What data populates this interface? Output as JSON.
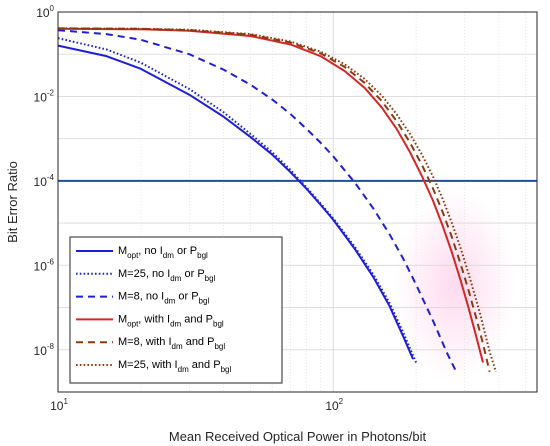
{
  "chart_data": {
    "type": "line",
    "x_scale": "log",
    "y_scale": "log",
    "xlabel": "Mean Received Optical Power in Photons/bit",
    "ylabel": "Bit Error Ratio",
    "xlim": [
      10,
      550
    ],
    "ylim": [
      1e-09,
      1
    ],
    "grid": true,
    "legend_position": "bottom-left",
    "x_ticks": [
      {
        "value": 10,
        "base": "10",
        "exp": "1"
      },
      {
        "value": 100,
        "base": "10",
        "exp": "2"
      }
    ],
    "y_ticks": [
      {
        "value": 1,
        "base": "10",
        "exp": "0"
      },
      {
        "value": 0.01,
        "base": "10",
        "exp": "-2"
      },
      {
        "value": 0.0001,
        "base": "10",
        "exp": "-4"
      },
      {
        "value": 1e-06,
        "base": "10",
        "exp": "-6"
      },
      {
        "value": 1e-08,
        "base": "10",
        "exp": "-8"
      }
    ],
    "reference_line": {
      "y": 0.0001,
      "color": "#1f4e9c"
    },
    "series": [
      {
        "color": "#1f1fd6",
        "dash": "solid",
        "legend": {
          "pre": "M",
          "sub1": "opt",
          "mid": ", no I",
          "sub2": "dm",
          "mid2": " or P",
          "sub3": "bgl"
        },
        "points": [
          [
            10,
            0.16
          ],
          [
            15,
            0.09
          ],
          [
            20,
            0.045
          ],
          [
            30,
            0.011
          ],
          [
            40,
            0.0033
          ],
          [
            50,
            0.0011
          ],
          [
            60,
            0.00042
          ],
          [
            70,
            0.00016
          ],
          [
            80,
            6.5e-05
          ],
          [
            90,
            2.7e-05
          ],
          [
            100,
            1.2e-05
          ],
          [
            120,
            2.4e-06
          ],
          [
            140,
            5.2e-07
          ],
          [
            160,
            1.1e-07
          ],
          [
            180,
            2e-08
          ],
          [
            195,
            6e-09
          ]
        ]
      },
      {
        "color": "#1f1fd6",
        "dash": "dotted",
        "legend": {
          "pre": "M=25",
          "sub1": "",
          "mid": ", no I",
          "sub2": "dm",
          "mid2": " or P",
          "sub3": "bgl"
        },
        "points": [
          [
            10,
            0.24
          ],
          [
            15,
            0.13
          ],
          [
            20,
            0.063
          ],
          [
            30,
            0.015
          ],
          [
            40,
            0.0042
          ],
          [
            50,
            0.0013
          ],
          [
            60,
            0.00048
          ],
          [
            70,
            0.00018
          ],
          [
            80,
            7e-05
          ],
          [
            90,
            2.9e-05
          ],
          [
            100,
            1.3e-05
          ],
          [
            120,
            2.7e-06
          ],
          [
            140,
            6e-07
          ],
          [
            160,
            1.3e-07
          ],
          [
            180,
            2.5e-08
          ],
          [
            200,
            5e-09
          ]
        ]
      },
      {
        "color": "#1f1fd6",
        "dash": "dashed",
        "legend": {
          "pre": "M=8",
          "sub1": "",
          "mid": ", no I",
          "sub2": "dm",
          "mid2": " or P",
          "sub3": "bgl"
        },
        "points": [
          [
            10,
            0.37
          ],
          [
            15,
            0.3
          ],
          [
            20,
            0.22
          ],
          [
            30,
            0.1
          ],
          [
            40,
            0.043
          ],
          [
            50,
            0.019
          ],
          [
            60,
            0.0085
          ],
          [
            70,
            0.0038
          ],
          [
            80,
            0.0017
          ],
          [
            90,
            0.0008
          ],
          [
            100,
            0.00038
          ],
          [
            120,
            9e-05
          ],
          [
            140,
            2.2e-05
          ],
          [
            160,
            5.5e-06
          ],
          [
            180,
            1.4e-06
          ],
          [
            200,
            3.5e-07
          ],
          [
            230,
            5e-08
          ],
          [
            260,
            8e-09
          ],
          [
            280,
            3e-09
          ]
        ]
      },
      {
        "color": "#d62728",
        "dash": "solid",
        "legend": {
          "pre": "M",
          "sub1": "opt",
          "mid": ", with I",
          "sub2": "dm",
          "mid2": " and P",
          "sub3": "bgl"
        },
        "points": [
          [
            10,
            0.4
          ],
          [
            20,
            0.39
          ],
          [
            30,
            0.36
          ],
          [
            50,
            0.27
          ],
          [
            70,
            0.17
          ],
          [
            90,
            0.09
          ],
          [
            110,
            0.04
          ],
          [
            130,
            0.016
          ],
          [
            150,
            0.0055
          ],
          [
            170,
            0.0017
          ],
          [
            190,
            0.00048
          ],
          [
            210,
            0.00013
          ],
          [
            230,
            3.5e-05
          ],
          [
            250,
            8.5e-06
          ],
          [
            270,
            2e-06
          ],
          [
            290,
            4.5e-07
          ],
          [
            310,
            1e-07
          ],
          [
            330,
            2.2e-08
          ],
          [
            350,
            5e-09
          ]
        ]
      },
      {
        "color": "#8b3a0f",
        "dash": "dashed",
        "legend": {
          "pre": "M=8",
          "sub1": "",
          "mid": ", with I",
          "sub2": "dm",
          "mid2": " and P",
          "sub3": "bgl"
        },
        "points": [
          [
            10,
            0.41
          ],
          [
            20,
            0.4
          ],
          [
            30,
            0.37
          ],
          [
            50,
            0.29
          ],
          [
            70,
            0.19
          ],
          [
            90,
            0.105
          ],
          [
            110,
            0.05
          ],
          [
            130,
            0.021
          ],
          [
            150,
            0.0078
          ],
          [
            170,
            0.0026
          ],
          [
            190,
            0.00081
          ],
          [
            210,
            0.00024
          ],
          [
            230,
            6.8e-05
          ],
          [
            250,
            1.8e-05
          ],
          [
            270,
            4.6e-06
          ],
          [
            290,
            1.1e-06
          ],
          [
            310,
            2.6e-07
          ],
          [
            330,
            6e-08
          ],
          [
            350,
            1.4e-08
          ],
          [
            370,
            3e-09
          ]
        ]
      },
      {
        "color": "#8b3a0f",
        "dash": "dotted",
        "legend": {
          "pre": "M=25",
          "sub1": "",
          "mid": ", with I",
          "sub2": "dm",
          "mid2": " and P",
          "sub3": "bgl"
        },
        "points": [
          [
            10,
            0.41
          ],
          [
            20,
            0.4
          ],
          [
            30,
            0.38
          ],
          [
            50,
            0.3
          ],
          [
            70,
            0.2
          ],
          [
            90,
            0.115
          ],
          [
            110,
            0.058
          ],
          [
            130,
            0.026
          ],
          [
            150,
            0.0105
          ],
          [
            170,
            0.0038
          ],
          [
            190,
            0.0013
          ],
          [
            210,
            0.00042
          ],
          [
            230,
            0.00013
          ],
          [
            250,
            3.7e-05
          ],
          [
            270,
            1e-05
          ],
          [
            290,
            2.6e-06
          ],
          [
            310,
            6.5e-07
          ],
          [
            340,
            8e-08
          ],
          [
            370,
            9e-09
          ],
          [
            390,
            3e-09
          ]
        ]
      }
    ]
  }
}
